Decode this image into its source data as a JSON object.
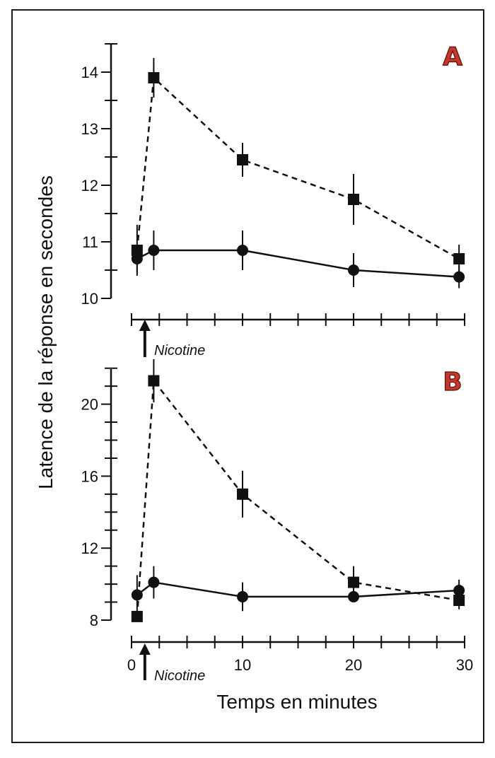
{
  "chart_data": [
    {
      "type": "line",
      "panel_label": "A",
      "ylabel": "Latence de la réponse en secondes",
      "ylim": [
        10,
        14.5
      ],
      "yticks": [
        10,
        11,
        12,
        13,
        14
      ],
      "xlim": [
        0,
        30
      ],
      "xticks": [
        0,
        10,
        20,
        30
      ],
      "annotation": "Nicotine",
      "annotation_x": 1.2,
      "series": [
        {
          "name": "squares-dashed",
          "marker": "square",
          "line": "dashed",
          "x": [
            0.5,
            2,
            10,
            20,
            29.5
          ],
          "y": [
            10.85,
            13.9,
            12.45,
            11.75,
            10.7
          ],
          "err": [
            0.45,
            0.35,
            0.3,
            0.45,
            0.25
          ]
        },
        {
          "name": "circles-solid",
          "marker": "circle",
          "line": "solid",
          "x": [
            0.5,
            2,
            10,
            20,
            29.5
          ],
          "y": [
            10.7,
            10.85,
            10.85,
            10.5,
            10.38
          ],
          "err": [
            0.25,
            0.35,
            0.35,
            0.3,
            0.2
          ]
        }
      ]
    },
    {
      "type": "line",
      "panel_label": "B",
      "xlabel": "Temps en minutes",
      "ylim": [
        8,
        22
      ],
      "yticks": [
        8,
        12,
        16,
        20
      ],
      "xlim": [
        0,
        30
      ],
      "xticks": [
        0,
        10,
        20,
        30
      ],
      "xtick_labels": [
        "0",
        "10",
        "20",
        "30"
      ],
      "annotation": "Nicotine",
      "annotation_x": 1.2,
      "series": [
        {
          "name": "squares-dashed",
          "marker": "square",
          "line": "dashed",
          "x": [
            0.5,
            2,
            10,
            20,
            29.5
          ],
          "y": [
            8.2,
            21.3,
            15.0,
            10.1,
            9.1
          ],
          "err": [
            0,
            1.2,
            1.3,
            0.9,
            0.5
          ]
        },
        {
          "name": "circles-solid",
          "marker": "circle",
          "line": "solid",
          "x": [
            0.5,
            2,
            10,
            20,
            29.5
          ],
          "y": [
            9.4,
            10.1,
            9.3,
            9.3,
            9.65
          ],
          "err": [
            1.1,
            0.9,
            0.8,
            0.2,
            0.6
          ]
        }
      ]
    }
  ]
}
